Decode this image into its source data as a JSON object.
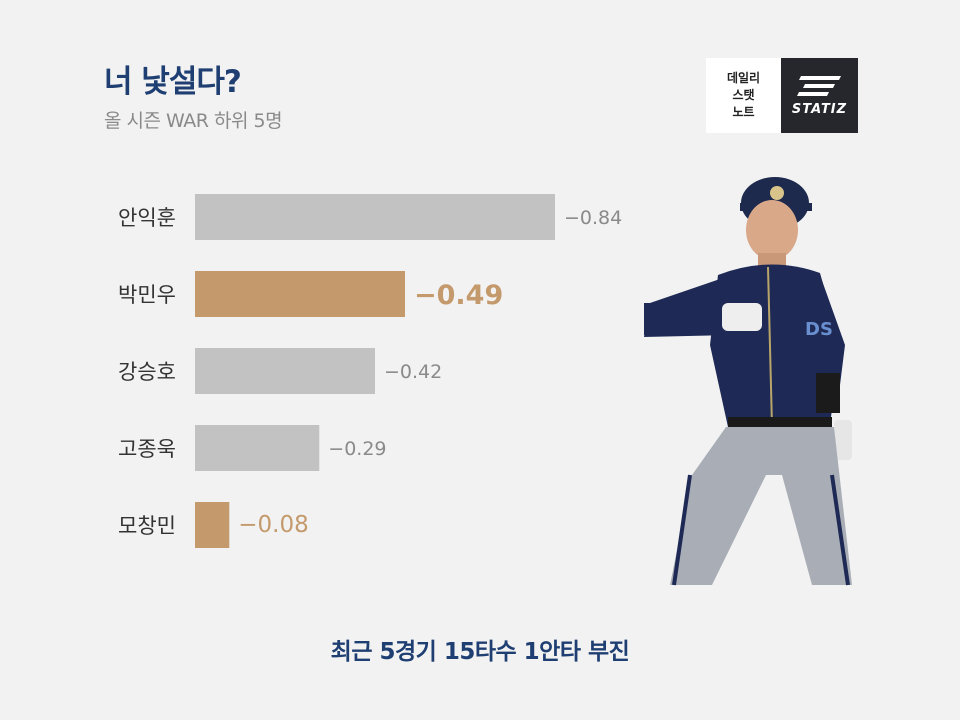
{
  "title": "너 낯설다?",
  "subtitle": "올 시즌 WAR 하위 5명",
  "logo": {
    "lines": [
      "데일리",
      "스탯",
      "노트"
    ],
    "brand": "STATIZ"
  },
  "footer": "최근 5경기 15타수 1안타 부진",
  "colors": {
    "default_bar": "#c2c2c2",
    "highlight_bar": "#c49a6c",
    "title": "#1f3f73"
  },
  "chart_data": {
    "type": "bar",
    "orientation": "horizontal",
    "categories": [
      "안익훈",
      "박민우",
      "강승호",
      "고종욱",
      "모창민"
    ],
    "values": [
      -0.84,
      -0.49,
      -0.42,
      -0.29,
      -0.08
    ],
    "value_labels": [
      "−0.84",
      "−0.49",
      "−0.42",
      "−0.29",
      "−0.08"
    ],
    "highlighted": [
      "박민우",
      "모창민"
    ]
  }
}
